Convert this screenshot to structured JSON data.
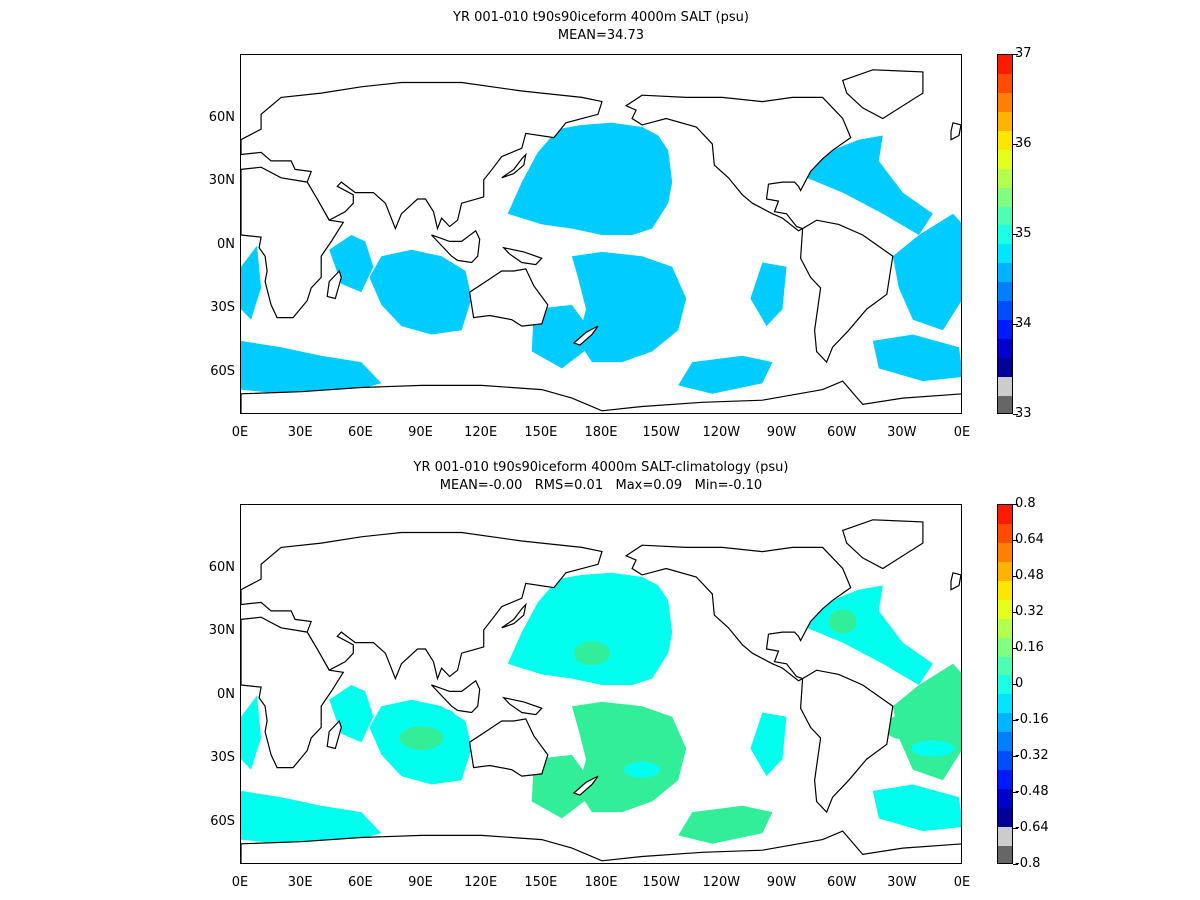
{
  "panels": [
    {
      "title_line1": "YR 001-010 t90s90iceform 4000m SALT (psu)",
      "title_line2": "MEAN=34.73",
      "colorbar_labels": [
        "37",
        "36",
        "35",
        "34",
        "33"
      ]
    },
    {
      "title_line1": "YR 001-010 t90s90iceform 4000m SALT-climatology (psu)",
      "title_line2": "MEAN=-0.00   RMS=0.01   Max=0.09   Min=-0.10",
      "colorbar_labels": [
        "0.8",
        "0.64",
        "0.48",
        "0.32",
        "0.16",
        "0",
        "-0.16",
        "-0.32",
        "-0.48",
        "-0.64",
        "-0.8"
      ]
    }
  ],
  "x_tick_labels": [
    "0E",
    "30E",
    "60E",
    "90E",
    "120E",
    "150E",
    "180E",
    "150W",
    "120W",
    "90W",
    "60W",
    "30W",
    "0E"
  ],
  "y_tick_labels": [
    "60N",
    "30N",
    "0N",
    "30S",
    "60S"
  ],
  "colors": {
    "panel1_fill": "#00ccff",
    "panel2_fill_main": "#00ffee",
    "panel2_fill_alt": "#33ee99",
    "coastline": "#000000",
    "colorbar": [
      "#ff1a00",
      "#ff4d00",
      "#ff8000",
      "#ffb300",
      "#ffe600",
      "#e6ff1a",
      "#b3ff4d",
      "#80ff80",
      "#4dffb3",
      "#1affe6",
      "#00e6ff",
      "#00b3ff",
      "#0080ff",
      "#004dff",
      "#001aff",
      "#0000cc",
      "#000099",
      "#cccccc",
      "#666666"
    ]
  }
}
